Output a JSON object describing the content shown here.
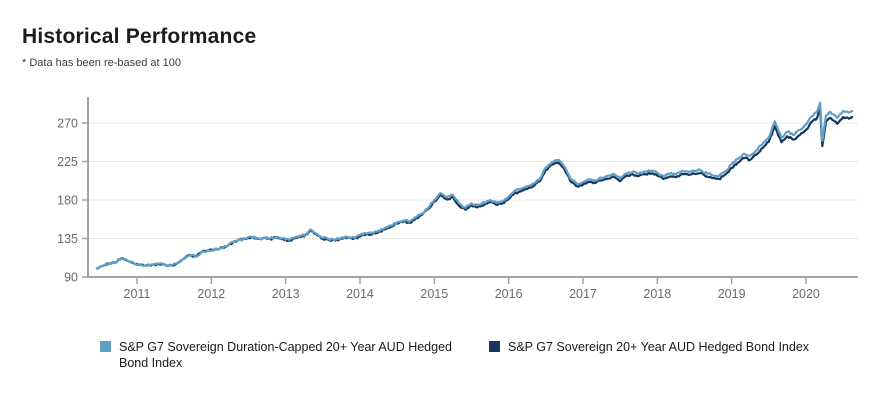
{
  "header": {
    "title": "Historical Performance",
    "subtitle": "* Data has been re-based at 100"
  },
  "chart_data": {
    "type": "line",
    "title": "Historical Performance",
    "note": "* Data has been re-based at 100",
    "xlabel": "",
    "ylabel": "",
    "xlim": [
      2010.35,
      2020.75
    ],
    "ylim": [
      90,
      300
    ],
    "x_ticks": [
      2011,
      2012,
      2013,
      2014,
      2015,
      2016,
      2017,
      2018,
      2019,
      2020
    ],
    "y_ticks": [
      90,
      135,
      180,
      225,
      270
    ],
    "grid": "horizontal",
    "legend_position": "bottom",
    "x": [
      2010.46,
      2010.54,
      2010.62,
      2010.71,
      2010.79,
      2010.87,
      2010.96,
      2011.04,
      2011.12,
      2011.21,
      2011.29,
      2011.37,
      2011.46,
      2011.54,
      2011.62,
      2011.71,
      2011.79,
      2011.87,
      2011.96,
      2012.04,
      2012.12,
      2012.21,
      2012.29,
      2012.37,
      2012.46,
      2012.54,
      2012.62,
      2012.71,
      2012.79,
      2012.87,
      2012.96,
      2013.04,
      2013.12,
      2013.21,
      2013.29,
      2013.33,
      2013.42,
      2013.5,
      2013.58,
      2013.67,
      2013.75,
      2013.83,
      2013.92,
      2014.0,
      2014.08,
      2014.17,
      2014.25,
      2014.33,
      2014.42,
      2014.5,
      2014.58,
      2014.67,
      2014.75,
      2014.83,
      2014.92,
      2015.0,
      2015.08,
      2015.17,
      2015.25,
      2015.33,
      2015.42,
      2015.5,
      2015.58,
      2015.67,
      2015.75,
      2015.83,
      2015.92,
      2016.0,
      2016.08,
      2016.17,
      2016.25,
      2016.33,
      2016.42,
      2016.5,
      2016.58,
      2016.67,
      2016.75,
      2016.83,
      2016.92,
      2017.0,
      2017.08,
      2017.17,
      2017.25,
      2017.33,
      2017.42,
      2017.5,
      2017.58,
      2017.67,
      2017.75,
      2017.83,
      2017.92,
      2018.0,
      2018.08,
      2018.17,
      2018.25,
      2018.33,
      2018.42,
      2018.5,
      2018.58,
      2018.67,
      2018.75,
      2018.83,
      2018.92,
      2019.0,
      2019.08,
      2019.17,
      2019.25,
      2019.33,
      2019.42,
      2019.5,
      2019.58,
      2019.67,
      2019.75,
      2019.83,
      2019.92,
      2020.0,
      2020.08,
      2020.15,
      2020.19,
      2020.22,
      2020.27,
      2020.33,
      2020.42,
      2020.5,
      2020.58,
      2020.62
    ],
    "series": [
      {
        "name": "S&P G7 Sovereign Duration-Capped 20+ Year AUD Hedged Bond Index",
        "color": "#629fc5",
        "values": [
          100,
          103,
          105.5,
          107,
          112,
          109,
          106,
          104.5,
          103.5,
          104.5,
          105.5,
          104,
          103.5,
          106,
          111,
          116,
          114,
          119,
          121,
          122,
          124,
          126,
          131,
          134,
          135,
          137,
          135,
          136,
          135,
          136.5,
          135,
          133.5,
          136,
          138,
          141,
          145.5,
          140,
          136,
          134.5,
          133.5,
          136,
          137,
          136,
          139,
          141,
          142,
          144,
          147,
          150,
          154,
          156,
          155,
          160,
          164,
          171,
          180,
          188,
          183,
          186,
          176,
          171,
          176,
          174,
          177,
          180,
          177,
          179,
          184,
          191,
          193,
          196,
          199,
          205,
          218,
          224,
          227,
          219,
          205,
          199,
          201,
          204,
          203,
          206,
          208,
          210,
          205,
          211,
          213,
          211,
          213,
          214,
          212,
          208,
          211,
          210,
          214,
          213,
          214,
          215,
          211,
          209,
          208,
          214,
          222,
          228,
          234,
          232,
          238,
          246,
          253,
          272,
          253,
          260,
          256,
          262,
          268,
          278,
          283,
          294,
          249,
          279,
          283,
          276,
          284,
          282,
          284
        ]
      },
      {
        "name": "S&P G7 Sovereign 20+ Year AUD Hedged Bond Index",
        "color": "#17365d",
        "values": [
          100,
          103,
          105.5,
          107,
          112,
          109,
          106,
          104.5,
          103.5,
          104.5,
          105.5,
          104,
          103.5,
          106,
          111,
          116,
          114,
          119,
          121,
          122,
          124,
          126,
          130.5,
          133.5,
          134.5,
          136.5,
          134.5,
          135.5,
          134.5,
          136,
          134.5,
          132.5,
          135,
          137,
          140,
          144.5,
          139,
          135,
          133.5,
          132.5,
          135,
          136,
          135,
          137.5,
          139.5,
          140.5,
          142.5,
          145.5,
          148.5,
          152.5,
          154.5,
          153.5,
          158.5,
          162.5,
          169.5,
          178,
          185.5,
          180.5,
          183.5,
          173.5,
          168.5,
          173.5,
          171.5,
          174.5,
          177.5,
          174.5,
          176.5,
          181,
          188,
          190,
          193,
          196,
          202,
          215,
          221,
          224,
          216,
          202,
          196,
          198,
          201,
          200,
          203,
          205,
          207,
          202,
          208,
          210,
          208,
          210,
          211,
          208.5,
          204.5,
          207.5,
          206.5,
          210.5,
          209.5,
          210.5,
          211.5,
          207.5,
          205.5,
          204.5,
          210,
          217.5,
          223.5,
          229,
          227,
          233,
          241,
          248,
          266.5,
          247.5,
          254.5,
          250.5,
          256,
          262,
          271.5,
          276,
          288,
          243,
          272,
          276,
          269,
          277,
          275,
          277
        ]
      }
    ],
    "style": {
      "axis_color": "#a3a3a3",
      "grid_color": "#e8e8e8",
      "tick_label_color": "#6b6b6b"
    }
  }
}
